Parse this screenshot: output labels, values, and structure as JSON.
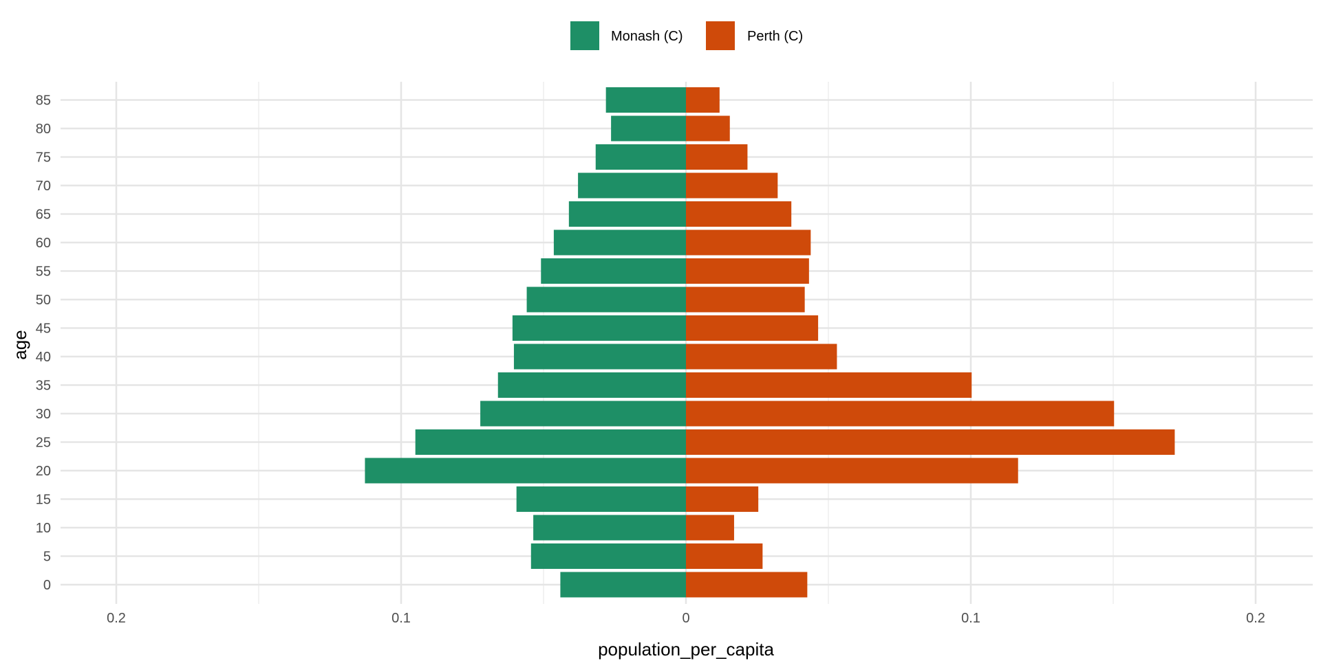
{
  "chart_data": {
    "type": "bar",
    "orientation": "horizontal",
    "subtype": "population-pyramid",
    "title": "",
    "xlabel": "population_per_capita",
    "ylabel": "age",
    "xlim": [
      -0.22,
      0.22
    ],
    "x_ticks": [
      -0.2,
      -0.1,
      0,
      0.1,
      0.2
    ],
    "x_tick_labels": [
      "0.2",
      "0.1",
      "0",
      "0.1",
      "0.2"
    ],
    "x_minor_ticks": [
      -0.15,
      -0.05,
      0.05,
      0.15
    ],
    "categories": [
      0,
      5,
      10,
      15,
      20,
      25,
      30,
      35,
      40,
      45,
      50,
      55,
      60,
      65,
      70,
      75,
      80,
      85
    ],
    "y_tick_labels": [
      "0",
      "5",
      "10",
      "15",
      "20",
      "25",
      "30",
      "35",
      "40",
      "45",
      "50",
      "55",
      "60",
      "65",
      "70",
      "75",
      "80",
      "85"
    ],
    "grid": true,
    "legend": {
      "placement": "top"
    },
    "series": [
      {
        "name": "Monash (C)",
        "color": "#1E8F66",
        "direction": "left",
        "values": [
          0.0441,
          0.0544,
          0.0536,
          0.0595,
          0.1127,
          0.095,
          0.0722,
          0.066,
          0.0604,
          0.0609,
          0.0559,
          0.0509,
          0.0464,
          0.0411,
          0.0379,
          0.0317,
          0.0263,
          0.0281
        ]
      },
      {
        "name": "Perth (C)",
        "color": "#CF4A0A",
        "direction": "right",
        "values": [
          0.0426,
          0.0269,
          0.0169,
          0.0254,
          0.1166,
          0.1716,
          0.1503,
          0.1003,
          0.053,
          0.0464,
          0.0417,
          0.0432,
          0.0438,
          0.037,
          0.0322,
          0.0216,
          0.0154,
          0.0118
        ]
      }
    ]
  }
}
